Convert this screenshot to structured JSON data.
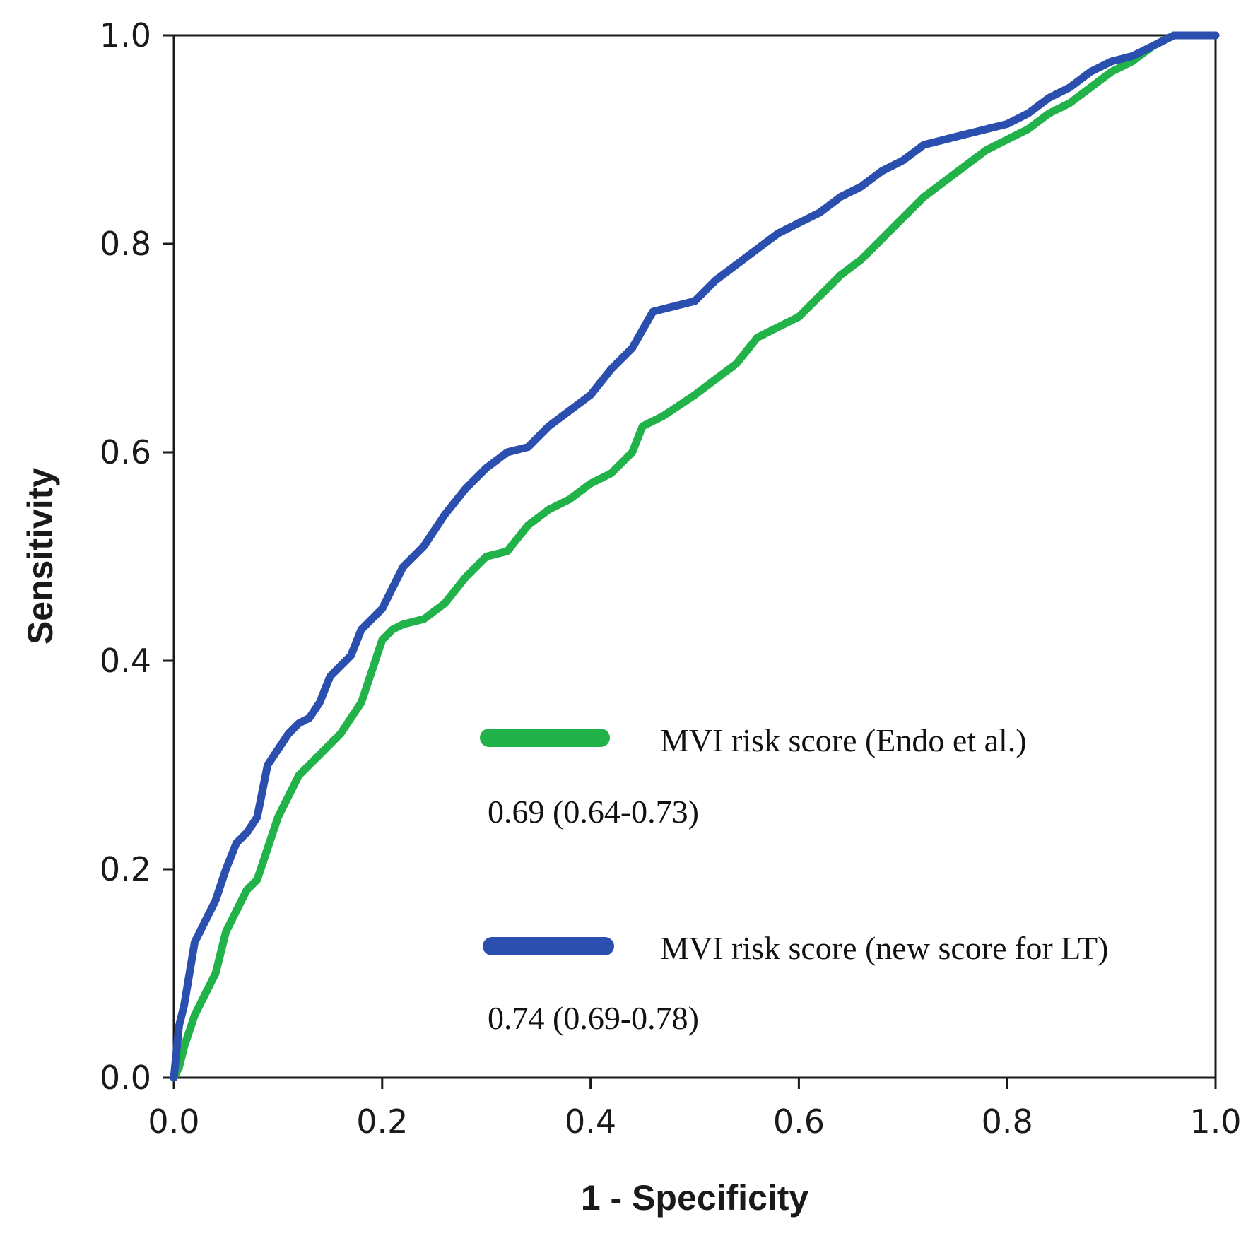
{
  "chart_data": {
    "type": "line",
    "title": "",
    "xlabel": "1 - Specificity",
    "ylabel": "Sensitivity",
    "xlim": [
      0,
      1
    ],
    "ylim": [
      0,
      1
    ],
    "grid": false,
    "x_ticks": [
      "0.0",
      "0.2",
      "0.4",
      "0.6",
      "0.8",
      "1.0"
    ],
    "y_ticks": [
      "0.0",
      "0.2",
      "0.4",
      "0.6",
      "0.8",
      "1.0"
    ],
    "legend_position": "bottom-right",
    "series": [
      {
        "name": "MVI risk score (Endo et al.)",
        "auc_label": "0.69 (0.64-0.73)",
        "color": "#21b24a",
        "points": [
          [
            0,
            0
          ],
          [
            0.005,
            0.01
          ],
          [
            0.01,
            0.03
          ],
          [
            0.02,
            0.06
          ],
          [
            0.03,
            0.08
          ],
          [
            0.04,
            0.1
          ],
          [
            0.05,
            0.14
          ],
          [
            0.06,
            0.16
          ],
          [
            0.07,
            0.18
          ],
          [
            0.08,
            0.19
          ],
          [
            0.09,
            0.22
          ],
          [
            0.1,
            0.25
          ],
          [
            0.11,
            0.27
          ],
          [
            0.12,
            0.29
          ],
          [
            0.13,
            0.3
          ],
          [
            0.14,
            0.31
          ],
          [
            0.16,
            0.33
          ],
          [
            0.18,
            0.36
          ],
          [
            0.19,
            0.39
          ],
          [
            0.2,
            0.42
          ],
          [
            0.21,
            0.43
          ],
          [
            0.22,
            0.435
          ],
          [
            0.24,
            0.44
          ],
          [
            0.26,
            0.455
          ],
          [
            0.28,
            0.48
          ],
          [
            0.3,
            0.5
          ],
          [
            0.32,
            0.505
          ],
          [
            0.34,
            0.53
          ],
          [
            0.36,
            0.545
          ],
          [
            0.38,
            0.555
          ],
          [
            0.4,
            0.57
          ],
          [
            0.42,
            0.58
          ],
          [
            0.44,
            0.6
          ],
          [
            0.45,
            0.625
          ],
          [
            0.47,
            0.635
          ],
          [
            0.5,
            0.655
          ],
          [
            0.52,
            0.67
          ],
          [
            0.54,
            0.685
          ],
          [
            0.56,
            0.71
          ],
          [
            0.58,
            0.72
          ],
          [
            0.6,
            0.73
          ],
          [
            0.62,
            0.75
          ],
          [
            0.64,
            0.77
          ],
          [
            0.66,
            0.785
          ],
          [
            0.68,
            0.805
          ],
          [
            0.7,
            0.825
          ],
          [
            0.72,
            0.845
          ],
          [
            0.74,
            0.86
          ],
          [
            0.76,
            0.875
          ],
          [
            0.78,
            0.89
          ],
          [
            0.8,
            0.9
          ],
          [
            0.82,
            0.91
          ],
          [
            0.84,
            0.925
          ],
          [
            0.86,
            0.935
          ],
          [
            0.88,
            0.95
          ],
          [
            0.9,
            0.965
          ],
          [
            0.92,
            0.975
          ],
          [
            0.94,
            0.99
          ],
          [
            0.96,
            1.0
          ],
          [
            1.0,
            1.0
          ]
        ]
      },
      {
        "name": "MVI risk score (new score for LT)",
        "auc_label": "0.74 (0.69-0.78)",
        "color": "#2b4fae",
        "points": [
          [
            0,
            0
          ],
          [
            0.005,
            0.05
          ],
          [
            0.01,
            0.07
          ],
          [
            0.02,
            0.13
          ],
          [
            0.03,
            0.15
          ],
          [
            0.04,
            0.17
          ],
          [
            0.05,
            0.2
          ],
          [
            0.06,
            0.225
          ],
          [
            0.07,
            0.235
          ],
          [
            0.08,
            0.25
          ],
          [
            0.09,
            0.3
          ],
          [
            0.1,
            0.315
          ],
          [
            0.11,
            0.33
          ],
          [
            0.12,
            0.34
          ],
          [
            0.13,
            0.345
          ],
          [
            0.14,
            0.36
          ],
          [
            0.15,
            0.385
          ],
          [
            0.16,
            0.395
          ],
          [
            0.17,
            0.405
          ],
          [
            0.18,
            0.43
          ],
          [
            0.19,
            0.44
          ],
          [
            0.2,
            0.45
          ],
          [
            0.21,
            0.47
          ],
          [
            0.22,
            0.49
          ],
          [
            0.24,
            0.51
          ],
          [
            0.26,
            0.54
          ],
          [
            0.28,
            0.565
          ],
          [
            0.3,
            0.585
          ],
          [
            0.32,
            0.6
          ],
          [
            0.34,
            0.605
          ],
          [
            0.36,
            0.625
          ],
          [
            0.38,
            0.64
          ],
          [
            0.4,
            0.655
          ],
          [
            0.42,
            0.68
          ],
          [
            0.44,
            0.7
          ],
          [
            0.46,
            0.735
          ],
          [
            0.48,
            0.74
          ],
          [
            0.5,
            0.745
          ],
          [
            0.52,
            0.765
          ],
          [
            0.54,
            0.78
          ],
          [
            0.56,
            0.795
          ],
          [
            0.58,
            0.81
          ],
          [
            0.6,
            0.82
          ],
          [
            0.62,
            0.83
          ],
          [
            0.64,
            0.845
          ],
          [
            0.66,
            0.855
          ],
          [
            0.68,
            0.87
          ],
          [
            0.7,
            0.88
          ],
          [
            0.72,
            0.895
          ],
          [
            0.74,
            0.9
          ],
          [
            0.76,
            0.905
          ],
          [
            0.78,
            0.91
          ],
          [
            0.8,
            0.915
          ],
          [
            0.82,
            0.925
          ],
          [
            0.84,
            0.94
          ],
          [
            0.86,
            0.95
          ],
          [
            0.88,
            0.965
          ],
          [
            0.9,
            0.975
          ],
          [
            0.92,
            0.98
          ],
          [
            0.94,
            0.99
          ],
          [
            0.96,
            1.0
          ],
          [
            0.98,
            1.0
          ],
          [
            1.0,
            1.0
          ]
        ]
      }
    ]
  }
}
